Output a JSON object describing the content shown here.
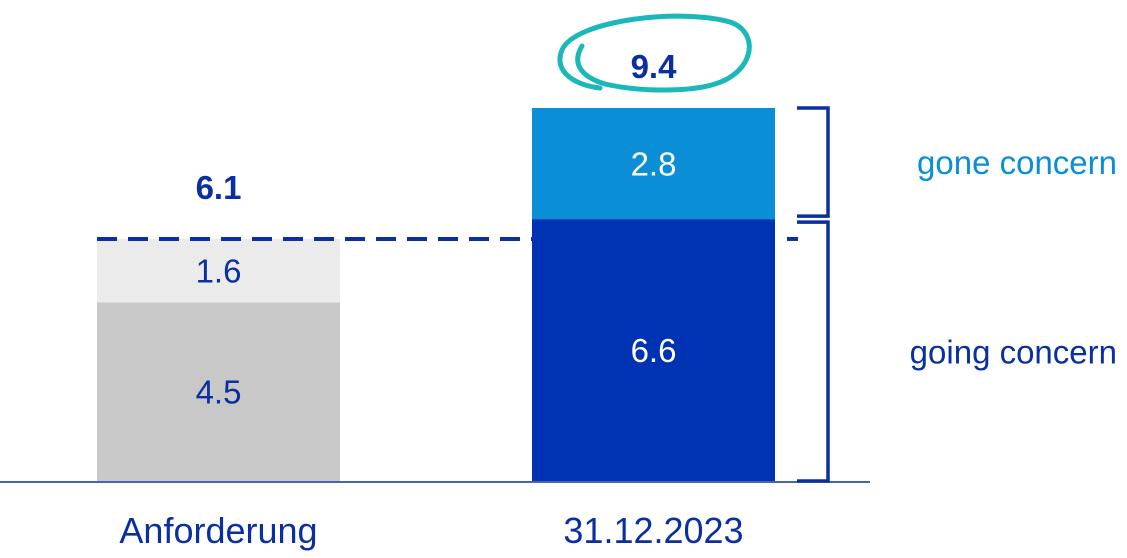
{
  "chart_data": {
    "type": "bar",
    "stacked": true,
    "categories": [
      "Anforderung",
      "31.12.2023"
    ],
    "bars": [
      {
        "category": "Anforderung",
        "total_label": "6.1",
        "segments": [
          {
            "value": 4.5,
            "label": "4.5",
            "color": "#c8c8c8",
            "text_color": "#0a2fa0"
          },
          {
            "value": 1.6,
            "label": "1.6",
            "color": "#ebebeb",
            "text_color": "#0a2fa0"
          }
        ]
      },
      {
        "category": "31.12.2023",
        "total_label": "9.4",
        "highlighted_total": true,
        "segments": [
          {
            "value": 6.6,
            "label": "6.6",
            "color": "#0033b4",
            "text_color": "#ffffff"
          },
          {
            "value": 2.8,
            "label": "2.8",
            "color": "#0a8fd6",
            "text_color": "#ffffff"
          }
        ]
      }
    ],
    "reference_line": {
      "value": 6.1,
      "style": "dashed",
      "color": "#0a2fa0"
    },
    "brackets": [
      {
        "label": "gone concern",
        "from": 6.6,
        "to": 9.4,
        "color": "#0a8fd6"
      },
      {
        "label": "going concern",
        "from": 0,
        "to": 6.6,
        "color": "#0a2fa0"
      }
    ],
    "colors": {
      "axis": "#0a2fa0",
      "highlight_circle": "#1ab8b8",
      "total_text": "#0a2fa0"
    },
    "ylim": [
      0,
      9.4
    ],
    "grid": false,
    "legend": "none"
  }
}
